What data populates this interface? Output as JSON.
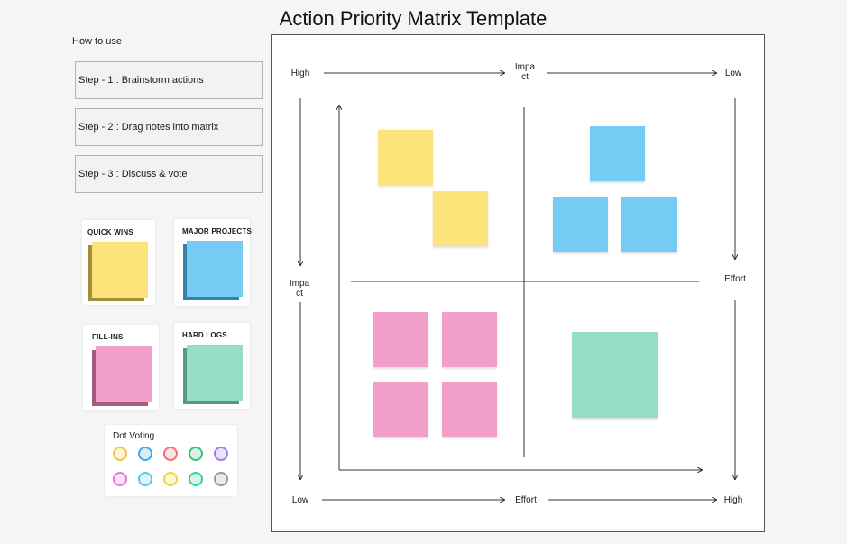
{
  "title": "Action Priority Matrix Template",
  "how_to_use": "How to use",
  "steps": [
    "Step - 1 : Brainstorm actions",
    "Step - 2 : Drag notes into matrix",
    "Step - 3 : Discuss & vote"
  ],
  "legend": [
    {
      "label": "QUICK WINS",
      "color": "#fde37a",
      "shade": "#a68f3a"
    },
    {
      "label": "MAJOR PROJECTS",
      "color": "#76cbf5",
      "shade": "#3a7fa8"
    },
    {
      "label": "FILL-INS",
      "color": "#f2a0cb",
      "shade": "#a85a84"
    },
    {
      "label": "HARD LOGS",
      "color": "#97ddc4",
      "shade": "#579a82"
    }
  ],
  "dot_voting": {
    "label": "Dot Voting",
    "dots": [
      "#f3c444",
      "#4aa6e8",
      "#ef6f6f",
      "#3bbf86",
      "#a07ce8",
      "#e07bd8",
      "#59c7ea",
      "#f4d03f",
      "#34d1a0",
      "#9b9b9b"
    ]
  },
  "axis": {
    "top_left": "High",
    "top_center": "Impa\nct",
    "top_right": "Low",
    "left_center": "Impa\nct",
    "right_center": "Effort",
    "bottom_left": "Low",
    "bottom_center": "Effort",
    "bottom_right": "High"
  },
  "notes": {
    "quick_wins_color": "#fde37a",
    "major_projects_color": "#76cbf5",
    "fill_ins_color": "#f2a0cb",
    "hard_logs_color": "#97ddc4"
  }
}
